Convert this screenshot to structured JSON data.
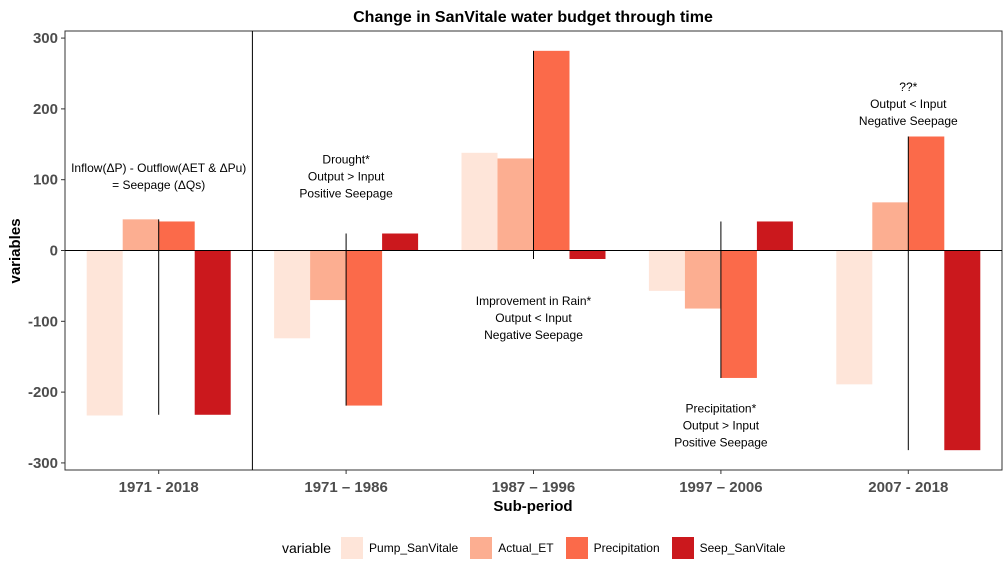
{
  "chart_data": {
    "type": "bar",
    "title": "Change in SanVitale water budget through time",
    "xlabel": "Sub-period",
    "ylabel": "variables",
    "categories": [
      "1971 - 2018",
      "1971 – 1986",
      "1987 – 1996",
      "1997 – 2006",
      "2007 - 2018"
    ],
    "ylim": [
      -310,
      310
    ],
    "yticks": [
      -300,
      -200,
      -100,
      0,
      100,
      200,
      300
    ],
    "ytick_labels": [
      "-300",
      "-200",
      "-100",
      "0",
      "100",
      "200",
      "300"
    ],
    "series": [
      {
        "name": "Pump_SanVitale",
        "color": "#fee5d9",
        "values": [
          -233,
          -124,
          138,
          -57,
          -189
        ]
      },
      {
        "name": "Actual_ET",
        "color": "#fcae91",
        "values": [
          44,
          -70,
          130,
          -82,
          68
        ]
      },
      {
        "name": "Precipitation",
        "color": "#fb6a4a",
        "values": [
          41,
          -219,
          282,
          -180,
          161
        ]
      },
      {
        "name": "Seep_SanVitale",
        "color": "#cb181d",
        "values": [
          -232,
          24,
          -12,
          41,
          -282
        ]
      }
    ],
    "legend_title": "variable",
    "legend_position": "bottom",
    "whiskers": [
      {
        "category": 0,
        "from": 44,
        "to": -232
      },
      {
        "category": 1,
        "from": 24,
        "to": -219
      },
      {
        "category": 2,
        "from": 282,
        "to": -12
      },
      {
        "category": 3,
        "from": 41,
        "to": -180
      },
      {
        "category": 4,
        "from": 161,
        "to": -282
      }
    ],
    "annotations": [
      {
        "category": 0,
        "y": 111,
        "lines": [
          "Inflow(ΔP) - Outflow(AET & ΔPu)",
          "= Seepage (ΔQs)"
        ]
      },
      {
        "category": 1,
        "y": 123,
        "lines": [
          "Drought*",
          "Output > Input",
          "Positive Seepage"
        ]
      },
      {
        "category": 2,
        "y": -77,
        "lines": [
          "Improvement in Rain*",
          "Output < Input",
          "Negative Seepage"
        ]
      },
      {
        "category": 3,
        "y": -229,
        "lines": [
          "Precipitation*",
          "Output > Input",
          "Positive Seepage"
        ]
      },
      {
        "category": 4,
        "y": 225,
        "lines": [
          "??*",
          "Output < Input",
          "Negative Seepage"
        ]
      }
    ],
    "grid": false
  }
}
